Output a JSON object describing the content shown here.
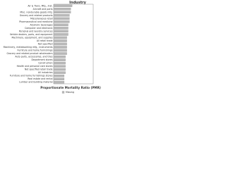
{
  "chart_data": {
    "type": "bar",
    "orientation": "horizontal",
    "title": "Industry",
    "x_label": "Proportionate Mortality Ratio (PMR)",
    "categories": [
      "Air & Trans. Mfg., Inst.",
      "Aircraft and parts",
      "Misc. nondurable goods mfg.",
      "Grocery and related products",
      "Miscellaneous retail",
      "Pharmaceutical and medicine",
      "Alcoholic beverages",
      "Computer and electronic",
      "Personal and laundry services",
      "Vehicle dealers, parts, and equipment",
      "Machinery, equipment, and supplies",
      "All retail trade",
      "Not specified",
      "Machinery, metalworking mfg., instruments",
      "Furniture and home furnishings",
      "Grocery and related product wholesalers",
      "Auto parts, accessories, and tires",
      "Department stores",
      "Construction",
      "Health and personal care stores",
      "Not specified retail trade",
      "All industries",
      "Furniture and home furnishings stores",
      "Real estate and rental",
      "Lumber and building material"
    ],
    "series": [
      {
        "name": "Missing",
        "color": "#b8b8b8",
        "values": [
          1.4,
          1.3,
          1.3,
          1.2,
          1.2,
          1.2,
          1.1,
          1.1,
          1.1,
          1.1,
          1.0,
          1.0,
          1.0,
          1.0,
          1.0,
          1.0,
          0.9,
          0.9,
          0.9,
          0.9,
          0.9,
          0.9,
          0.8,
          0.8,
          0.8
        ]
      }
    ],
    "xlim": [
      0,
      3
    ],
    "legend": "bottom"
  }
}
